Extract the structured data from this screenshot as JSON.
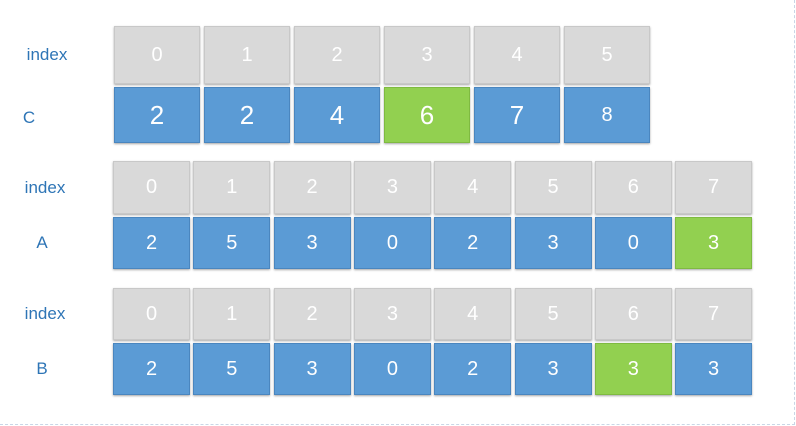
{
  "arrays": [
    {
      "id": "C",
      "index_label": "index",
      "label": "C",
      "indices": [
        "0",
        "1",
        "2",
        "3",
        "4",
        "5"
      ],
      "values": [
        "2",
        "2",
        "4",
        "6",
        "7",
        "8"
      ],
      "highlight": [
        3
      ]
    },
    {
      "id": "A",
      "index_label": "index",
      "label": "A",
      "indices": [
        "0",
        "1",
        "2",
        "3",
        "4",
        "5",
        "6",
        "7"
      ],
      "values": [
        "2",
        "5",
        "3",
        "0",
        "2",
        "3",
        "0",
        "3"
      ],
      "highlight": [
        7
      ]
    },
    {
      "id": "B",
      "index_label": "index",
      "label": "B",
      "indices": [
        "0",
        "1",
        "2",
        "3",
        "4",
        "5",
        "6",
        "7"
      ],
      "values": [
        "2",
        "5",
        "3",
        "0",
        "2",
        "3",
        "3",
        "3"
      ],
      "highlight": [
        6
      ]
    }
  ],
  "colors": {
    "index_cell": "#d9d9d9",
    "value_cell": "#5b9bd5",
    "highlight_cell": "#92d050",
    "label_text": "#2e75b6"
  }
}
